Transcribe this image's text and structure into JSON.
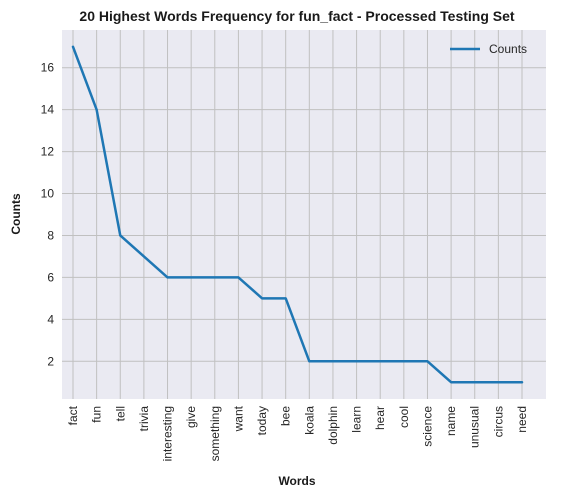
{
  "chart_data": {
    "type": "line",
    "title": "20 Highest Words Frequency for fun_fact - Processed Testing Set",
    "xlabel": "Words",
    "ylabel": "Counts",
    "categories": [
      "fact",
      "fun",
      "tell",
      "trivia",
      "interesting",
      "give",
      "something",
      "want",
      "today",
      "bee",
      "koala",
      "dolphin",
      "learn",
      "hear",
      "cool",
      "science",
      "name",
      "unusual",
      "circus",
      "need"
    ],
    "series": [
      {
        "name": "Counts",
        "values": [
          17,
          14,
          8,
          7,
          6,
          6,
          6,
          6,
          5,
          5,
          2,
          2,
          2,
          2,
          2,
          2,
          1,
          1,
          1,
          1
        ]
      }
    ],
    "ylim": [
      0.2,
      17.8
    ],
    "yticks": [
      2,
      4,
      6,
      8,
      10,
      12,
      14,
      16
    ],
    "grid": true,
    "legend": "top-right",
    "colors": {
      "line": "#1f77b4",
      "plot_background": "#eaeaf2",
      "grid": "#c0c0c0"
    }
  }
}
